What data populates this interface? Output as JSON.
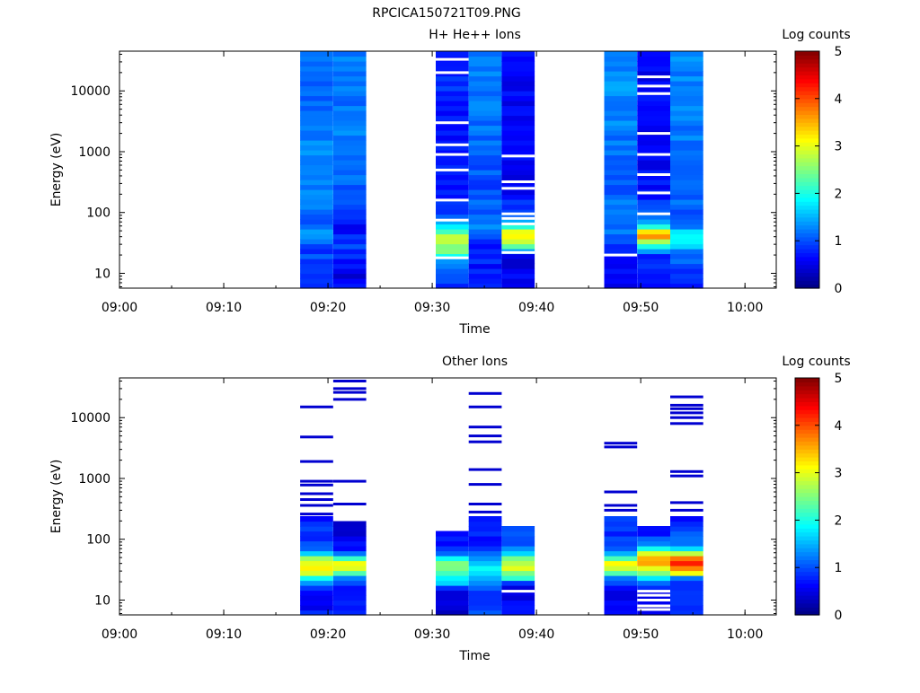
{
  "figure_title": "RPCICA150721T09.PNG",
  "chart_data": [
    {
      "type": "heatmap",
      "title": "H+ He++ Ions",
      "xlabel": "Time",
      "ylabel": "Energy (eV)",
      "y_scale": "log",
      "ylim": [
        5.7,
        45000
      ],
      "xlim": [
        "09:00",
        "10:03"
      ],
      "x_ticks": [
        "09:00",
        "09:10",
        "09:20",
        "09:30",
        "09:40",
        "09:50",
        "10:00"
      ],
      "y_ticks": [
        "10",
        "100",
        "1000",
        "10000"
      ],
      "colorbar": {
        "label": "Log counts",
        "min": 0,
        "max": 5,
        "ticks": [
          "0",
          "1",
          "2",
          "3",
          "4",
          "5"
        ]
      },
      "columns": [
        {
          "start": "09:17:20",
          "end": "09:20:30",
          "profile": [
            [
              6,
              1.0
            ],
            [
              15,
              1.0
            ],
            [
              25,
              0.9
            ],
            [
              35,
              1.1
            ],
            [
              45,
              1.4
            ],
            [
              55,
              1.2
            ],
            [
              80,
              1.0
            ],
            [
              150,
              1.2
            ],
            [
              500,
              1.3
            ],
            [
              2000,
              1.2
            ],
            [
              8000,
              1.1
            ],
            [
              45000,
              1.2
            ]
          ],
          "gaps": []
        },
        {
          "start": "09:20:30",
          "end": "09:23:40",
          "profile": [
            [
              6,
              0.6
            ],
            [
              9,
              0.5
            ],
            [
              15,
              0.7
            ],
            [
              25,
              0.9
            ],
            [
              45,
              0.8
            ],
            [
              60,
              0.6
            ],
            [
              100,
              1.0
            ],
            [
              300,
              1.1
            ],
            [
              1000,
              1.2
            ],
            [
              5000,
              1.2
            ],
            [
              45000,
              1.3
            ]
          ],
          "gaps": []
        },
        {
          "start": "09:30:20",
          "end": "09:33:30",
          "profile": [
            [
              6,
              0.9
            ],
            [
              15,
              1.3
            ],
            [
              20,
              2.2
            ],
            [
              28,
              2.6
            ],
            [
              35,
              2.9
            ],
            [
              45,
              2.5
            ],
            [
              55,
              2.0
            ],
            [
              80,
              1.0
            ],
            [
              200,
              0.7
            ],
            [
              1000,
              0.7
            ],
            [
              10000,
              0.8
            ],
            [
              45000,
              0.8
            ]
          ],
          "gaps": [
            18,
            75,
            160,
            500,
            900,
            1300,
            3000,
            20000,
            33000
          ]
        },
        {
          "start": "09:33:30",
          "end": "09:36:40",
          "profile": [
            [
              6,
              0.8
            ],
            [
              12,
              0.7
            ],
            [
              20,
              0.9
            ],
            [
              30,
              0.7
            ],
            [
              45,
              1.0
            ],
            [
              60,
              1.2
            ],
            [
              100,
              1.1
            ],
            [
              300,
              1.0
            ],
            [
              1000,
              1.1
            ],
            [
              10000,
              1.2
            ],
            [
              45000,
              1.2
            ]
          ],
          "gaps": []
        },
        {
          "start": "09:36:40",
          "end": "09:39:50",
          "profile": [
            [
              6,
              0.6
            ],
            [
              15,
              0.5
            ],
            [
              20,
              0.4
            ],
            [
              28,
              2.5
            ],
            [
              35,
              3.1
            ],
            [
              45,
              3.3
            ],
            [
              55,
              2.4
            ],
            [
              80,
              1.1
            ],
            [
              200,
              0.6
            ],
            [
              1000,
              0.6
            ],
            [
              10000,
              0.6
            ],
            [
              45000,
              0.7
            ]
          ],
          "gaps": [
            22,
            65,
            80,
            95,
            250,
            320,
            850
          ]
        },
        {
          "start": "09:46:30",
          "end": "09:49:40",
          "profile": [
            [
              6,
              0.5
            ],
            [
              12,
              0.6
            ],
            [
              20,
              0.8
            ],
            [
              40,
              1.1
            ],
            [
              80,
              1.2
            ],
            [
              200,
              1.1
            ],
            [
              1000,
              1.2
            ],
            [
              10000,
              1.3
            ],
            [
              45000,
              1.3
            ]
          ],
          "gaps": [
            20
          ]
        },
        {
          "start": "09:49:40",
          "end": "09:52:50",
          "profile": [
            [
              6,
              0.6
            ],
            [
              20,
              0.8
            ],
            [
              30,
              2.2
            ],
            [
              40,
              3.6
            ],
            [
              50,
              3.2
            ],
            [
              60,
              2.0
            ],
            [
              80,
              1.2
            ],
            [
              200,
              0.7
            ],
            [
              1000,
              0.6
            ],
            [
              10000,
              0.6
            ],
            [
              45000,
              0.6
            ]
          ],
          "gaps": [
            95,
            210,
            420,
            900,
            2000,
            9000,
            12000,
            17000
          ]
        },
        {
          "start": "09:52:50",
          "end": "09:56:00",
          "profile": [
            [
              6,
              0.8
            ],
            [
              15,
              1.0
            ],
            [
              25,
              1.4
            ],
            [
              35,
              1.9
            ],
            [
              45,
              1.9
            ],
            [
              60,
              1.3
            ],
            [
              100,
              1.1
            ],
            [
              300,
              1.2
            ],
            [
              1000,
              1.2
            ],
            [
              10000,
              1.2
            ],
            [
              45000,
              1.3
            ]
          ],
          "gaps": []
        }
      ]
    },
    {
      "type": "heatmap",
      "title": "Other Ions",
      "xlabel": "Time",
      "ylabel": "Energy (eV)",
      "y_scale": "log",
      "ylim": [
        5.7,
        45000
      ],
      "xlim": [
        "09:00",
        "10:03"
      ],
      "x_ticks": [
        "09:00",
        "09:10",
        "09:20",
        "09:30",
        "09:40",
        "09:50",
        "10:00"
      ],
      "y_ticks": [
        "10",
        "100",
        "1000",
        "10000"
      ],
      "colorbar": {
        "label": "Log counts",
        "min": 0,
        "max": 5,
        "ticks": [
          "0",
          "1",
          "2",
          "3",
          "4",
          "5"
        ]
      },
      "columns": [
        {
          "start": "09:17:20",
          "end": "09:20:30",
          "profile": [
            [
              6,
              0.7
            ],
            [
              15,
              0.6
            ],
            [
              20,
              1.4
            ],
            [
              28,
              2.9
            ],
            [
              38,
              3.2
            ],
            [
              50,
              2.6
            ],
            [
              65,
              1.3
            ],
            [
              100,
              0.9
            ],
            [
              180,
              0.8
            ],
            [
              230,
              0.6
            ]
          ],
          "gaps": [],
          "lines": [
            260,
            360,
            450,
            560,
            780,
            900,
            1900,
            4800,
            15000
          ]
        },
        {
          "start": "09:20:30",
          "end": "09:23:40",
          "profile": [
            [
              6,
              0.7
            ],
            [
              15,
              0.6
            ],
            [
              25,
              1.2
            ],
            [
              30,
              3.1
            ],
            [
              45,
              2.9
            ],
            [
              55,
              1.2
            ],
            [
              80,
              0.6
            ],
            [
              150,
              0.4
            ],
            [
              190,
              0.4
            ]
          ],
          "gaps": [],
          "lines": [
            380,
            900,
            20000,
            26000,
            30000,
            40000
          ]
        },
        {
          "start": "09:30:20",
          "end": "09:33:30",
          "profile": [
            [
              15,
              0.4
            ],
            [
              20,
              1.8
            ],
            [
              28,
              2.2
            ],
            [
              40,
              2.5
            ],
            [
              55,
              1.4
            ],
            [
              80,
              0.8
            ],
            [
              125,
              0.7
            ]
          ],
          "gaps": [],
          "lines": []
        },
        {
          "start": "09:33:30",
          "end": "09:36:40",
          "profile": [
            [
              6,
              0.9
            ],
            [
              13,
              1.0
            ],
            [
              20,
              1.2
            ],
            [
              30,
              2.0
            ],
            [
              40,
              1.5
            ],
            [
              60,
              1.1
            ],
            [
              100,
              0.7
            ],
            [
              200,
              0.8
            ],
            [
              240,
              0.6
            ]
          ],
          "gaps": [],
          "lines": [
            280,
            380,
            800,
            1400,
            4000,
            5000,
            7000,
            15000,
            25000
          ]
        },
        {
          "start": "09:36:40",
          "end": "09:39:50",
          "profile": [
            [
              10,
              0.6
            ],
            [
              18,
              0.5
            ],
            [
              25,
              2.4
            ],
            [
              38,
              3.0
            ],
            [
              50,
              2.3
            ],
            [
              70,
              1.3
            ],
            [
              100,
              1.0
            ],
            [
              170,
              0.8
            ]
          ],
          "gaps": [
            14
          ],
          "lines": []
        },
        {
          "start": "09:46:30",
          "end": "09:49:40",
          "profile": [
            [
              6,
              0.7
            ],
            [
              15,
              0.5
            ],
            [
              25,
              1.3
            ],
            [
              30,
              2.8
            ],
            [
              40,
              3.1
            ],
            [
              50,
              2.0
            ],
            [
              70,
              0.9
            ],
            [
              150,
              0.8
            ],
            [
              230,
              0.8
            ]
          ],
          "gaps": [],
          "lines": [
            300,
            360,
            600,
            3300,
            3800
          ]
        },
        {
          "start": "09:49:40",
          "end": "09:52:50",
          "profile": [
            [
              6,
              0.4
            ],
            [
              9,
              0.4
            ],
            [
              15,
              0.7
            ],
            [
              22,
              1.5
            ],
            [
              30,
              2.8
            ],
            [
              45,
              3.7
            ],
            [
              60,
              3.0
            ],
            [
              80,
              1.4
            ],
            [
              120,
              0.8
            ],
            [
              170,
              0.6
            ]
          ],
          "gaps": [
            7,
            8,
            10,
            12,
            14
          ],
          "lines": []
        },
        {
          "start": "09:52:50",
          "end": "09:56:00",
          "profile": [
            [
              6,
              0.9
            ],
            [
              15,
              0.9
            ],
            [
              22,
              0.6
            ],
            [
              30,
              3.6
            ],
            [
              40,
              4.2
            ],
            [
              55,
              3.4
            ],
            [
              75,
              1.4
            ],
            [
              120,
              1.0
            ],
            [
              200,
              0.8
            ],
            [
              250,
              0.6
            ]
          ],
          "gaps": [],
          "lines": [
            300,
            400,
            1100,
            1300,
            8000,
            10000,
            12000,
            14000,
            16000,
            22000
          ]
        }
      ]
    }
  ]
}
